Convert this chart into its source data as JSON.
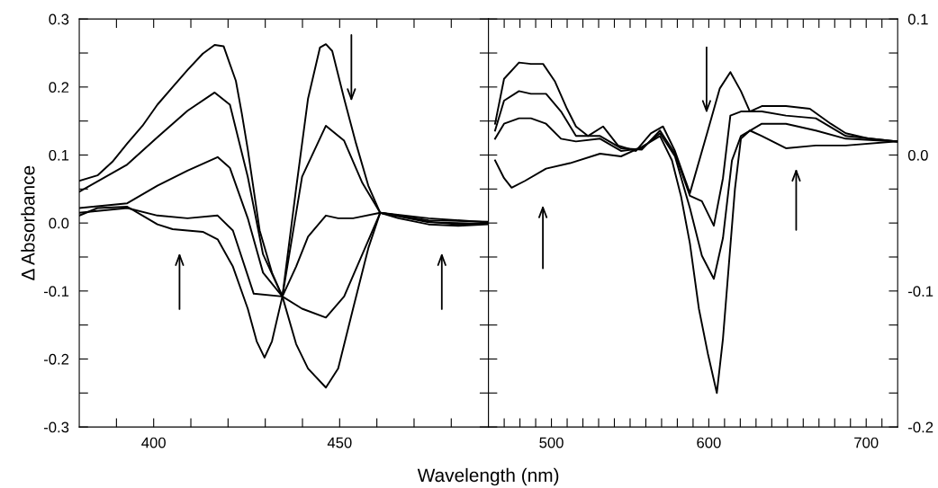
{
  "chart_data": [
    {
      "type": "line",
      "ylabel": "Δ Absorbance",
      "xlabel": "Wavelength (nm)",
      "xlim": [
        380,
        490
      ],
      "xticks": [
        {
          "value": 390,
          "label": null
        },
        400,
        {
          "value": 410,
          "label": null
        },
        {
          "value": 420,
          "label": null
        },
        {
          "value": 430,
          "label": null
        },
        {
          "value": 440,
          "label": null
        },
        450,
        {
          "value": 460,
          "label": null
        },
        {
          "value": 470,
          "label": null
        },
        {
          "value": 480,
          "label": null
        }
      ],
      "ylim": [
        -0.3,
        0.3
      ],
      "yticks": [
        -0.3,
        {
          "value": -0.25,
          "label": null
        },
        -0.2,
        {
          "value": -0.15,
          "label": null
        },
        -0.1,
        {
          "value": -0.05,
          "label": null
        },
        {
          "value": 0,
          "label": "0.0"
        },
        {
          "value": 0.05,
          "label": null
        },
        0.1,
        {
          "value": 0.15,
          "label": null
        },
        0.2,
        {
          "value": 0.25,
          "label": null
        },
        0.3
      ],
      "grid": false,
      "legend": false,
      "marker": "none",
      "line_style": "solid",
      "series": [
        {
          "color": "#000000",
          "x": [
            380,
            384.9,
            388.9,
            392.9,
            397,
            401,
            405.1,
            409.1,
            413.2,
            416.4,
            418.8,
            422.1,
            423.7,
            425.3,
            428.5,
            431.8,
            434.6,
            438.3,
            441.5,
            446.3,
            449.6,
            453.6,
            457.7,
            460.9,
            465.8,
            473.9,
            481.9,
            490
          ],
          "values": [
            0.062,
            0.07,
            0.09,
            0.117,
            0.143,
            0.174,
            0.2,
            0.225,
            0.249,
            0.262,
            0.26,
            0.209,
            0.161,
            0.108,
            -0.011,
            -0.073,
            -0.108,
            -0.178,
            -0.214,
            -0.242,
            -0.214,
            -0.126,
            -0.037,
            0.015,
            0.011,
            0.002,
            -0.002,
            0.0
          ]
        },
        {
          "color": "#000000",
          "x": [
            380,
            392.9,
            401,
            409.1,
            416.4,
            420.5,
            425.3,
            429.4,
            434.6,
            439.9,
            446.3,
            451.2,
            456.1,
            460.9,
            473.9,
            490
          ],
          "values": [
            0.046,
            0.086,
            0.126,
            0.165,
            0.192,
            0.174,
            0.068,
            -0.046,
            -0.108,
            -0.126,
            -0.139,
            -0.108,
            -0.046,
            0.015,
            0.007,
            0.001
          ]
        },
        {
          "color": "#000000",
          "x": [
            380,
            392.9,
            401,
            409.1,
            417.2,
            420.5,
            425.3,
            429.4,
            434.6,
            438.3,
            441.5,
            446.3,
            449.6,
            453.6,
            460.9,
            473.9,
            490
          ],
          "values": [
            0.022,
            0.029,
            0.055,
            0.077,
            0.097,
            0.081,
            0.007,
            -0.073,
            -0.108,
            -0.064,
            -0.02,
            0.011,
            0.007,
            0.007,
            0.015,
            0.004,
            0.002
          ]
        },
        {
          "color": "#000000",
          "x": [
            380,
            392.9,
            401,
            409.1,
            417.2,
            421.3,
            426.9,
            434.6,
            439.9,
            446.3,
            451.2,
            456.1,
            460.9,
            473.9,
            490
          ],
          "values": [
            0.015,
            0.022,
            0.011,
            0.007,
            0.011,
            -0.011,
            -0.104,
            -0.108,
            0.068,
            0.143,
            0.121,
            0.059,
            0.015,
            0.001,
            -0.001
          ]
        },
        {
          "color": "#000000",
          "x": [
            380,
            384.9,
            392.9,
            397,
            401,
            405.1,
            409.1,
            413.2,
            417.2,
            421.3,
            425.3,
            427.7,
            429.8,
            431.8,
            434.6,
            438.3,
            441.5,
            444.7,
            446.3,
            448.0,
            451.2,
            454.4,
            457.7,
            460.9,
            465.8,
            473.9,
            481.9,
            490
          ],
          "values": [
            0.011,
            0.022,
            0.024,
            0.011,
            -0.002,
            -0.009,
            -0.011,
            -0.013,
            -0.024,
            -0.064,
            -0.126,
            -0.174,
            -0.198,
            -0.174,
            -0.108,
            0.051,
            0.183,
            0.258,
            0.263,
            0.253,
            0.183,
            0.117,
            0.055,
            0.015,
            0.007,
            -0.002,
            -0.004,
            -0.002
          ]
        }
      ]
    },
    {
      "type": "line",
      "xlim": [
        460,
        720
      ],
      "xticks": [
        {
          "value": 470,
          "label": null
        },
        {
          "value": 480,
          "label": null
        },
        {
          "value": 490,
          "label": null
        },
        500,
        {
          "value": 510,
          "label": null
        },
        {
          "value": 520,
          "label": null
        },
        {
          "value": 530,
          "label": null
        },
        {
          "value": 540,
          "label": null
        },
        {
          "value": 550,
          "label": null
        },
        {
          "value": 560,
          "label": null
        },
        {
          "value": 570,
          "label": null
        },
        {
          "value": 580,
          "label": null
        },
        {
          "value": 590,
          "label": null
        },
        600,
        {
          "value": 610,
          "label": null
        },
        {
          "value": 620,
          "label": null
        },
        {
          "value": 630,
          "label": null
        },
        {
          "value": 640,
          "label": null
        },
        {
          "value": 650,
          "label": null
        },
        {
          "value": 660,
          "label": null
        },
        {
          "value": 670,
          "label": null
        },
        {
          "value": 680,
          "label": null
        },
        {
          "value": 690,
          "label": null
        },
        700,
        {
          "value": 710,
          "label": null
        }
      ],
      "y2lim": [
        -0.2,
        0.1
      ],
      "y2ticks": [
        -0.2,
        {
          "value": -0.175,
          "label": null
        },
        {
          "value": -0.15,
          "label": null
        },
        {
          "value": -0.125,
          "label": null
        },
        -0.1,
        {
          "value": -0.075,
          "label": null
        },
        {
          "value": -0.05,
          "label": null
        },
        {
          "value": -0.025,
          "label": null
        },
        {
          "value": 0,
          "label": "0.0"
        },
        {
          "value": 0.025,
          "label": null
        },
        {
          "value": 0.05,
          "label": null
        },
        {
          "value": 0.075,
          "label": null
        },
        0.1
      ],
      "grid": false,
      "legend": false,
      "marker": "none",
      "line_style": "solid",
      "series": [
        {
          "color": "#000000",
          "axis": "y2",
          "x": [
            464.2,
            469.9,
            479.4,
            487.0,
            494.7,
            502.3,
            509.9,
            515.6,
            523.2,
            532.8,
            542.3,
            553.7,
            563.2,
            570.9,
            578.5,
            588.0,
            599.4,
            607.0,
            613.7,
            620.4,
            626.1,
            633.7,
            649.0,
            664.2,
            677.5,
            687.0,
            702.3,
            719.4
          ],
          "values": [
            0.023,
            0.056,
            0.068,
            0.067,
            0.067,
            0.054,
            0.034,
            0.021,
            0.014,
            0.021,
            0.007,
            0.003,
            0.016,
            0.021,
            0.003,
            -0.028,
            0.018,
            0.049,
            0.061,
            0.047,
            0.032,
            0.036,
            0.036,
            0.034,
            0.023,
            0.016,
            0.012,
            0.01
          ]
        },
        {
          "color": "#000000",
          "axis": "y2",
          "x": [
            464.2,
            469.9,
            479.4,
            487.0,
            496.6,
            506.1,
            515.6,
            530.9,
            544.2,
            557.5,
            569.0,
            578.5,
            588.0,
            595.6,
            603.2,
            609.0,
            613.7,
            620.4,
            633.7,
            649.0,
            668.0,
            687.0,
            719.4
          ],
          "values": [
            0.018,
            0.04,
            0.047,
            0.045,
            0.045,
            0.032,
            0.014,
            0.014,
            0.005,
            0.004,
            0.018,
            0.001,
            -0.03,
            -0.034,
            -0.052,
            -0.017,
            0.029,
            0.032,
            0.032,
            0.029,
            0.027,
            0.014,
            0.01
          ]
        },
        {
          "color": "#000000",
          "axis": "y2",
          "x": [
            464.2,
            469.9,
            479.4,
            487.0,
            496.6,
            506.1,
            515.6,
            530.9,
            544.2,
            557.5,
            569.0,
            578.5,
            588.0,
            595.6,
            603.2,
            609.0,
            614.7,
            620.4,
            633.7,
            649.0,
            668.0,
            687.0,
            719.4
          ],
          "values": [
            0.012,
            0.023,
            0.027,
            0.027,
            0.023,
            0.012,
            0.01,
            0.012,
            0.003,
            0.005,
            0.016,
            -0.001,
            -0.039,
            -0.074,
            -0.091,
            -0.061,
            -0.004,
            0.014,
            0.023,
            0.023,
            0.018,
            0.012,
            0.01
          ]
        },
        {
          "color": "#000000",
          "axis": "y2",
          "x": [
            464.2,
            469.9,
            474.7,
            483.2,
            496.6,
            511.8,
            530.9,
            544.2,
            557.5,
            569.0,
            576.6,
            582.3,
            588.0,
            593.7,
            599.4,
            605.1,
            609.0,
            612.8,
            616.6,
            620.4,
            626.1,
            633.7,
            649.0,
            668.0,
            687.0,
            719.4
          ],
          "values": [
            -0.004,
            -0.017,
            -0.024,
            -0.019,
            -0.01,
            -0.006,
            0.001,
            -0.001,
            0.006,
            0.014,
            -0.004,
            -0.03,
            -0.065,
            -0.113,
            -0.146,
            -0.175,
            -0.135,
            -0.08,
            -0.025,
            0.012,
            0.018,
            0.014,
            0.005,
            0.007,
            0.007,
            0.01
          ]
        }
      ]
    }
  ]
}
